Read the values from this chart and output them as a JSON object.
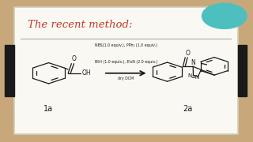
{
  "bg_outer": "#c8a87a",
  "bg_inner": "#faf8f2",
  "border_color": "#d0cdb8",
  "title_text": "The recent method:",
  "title_color": "#c0392b",
  "sep_color": "#b0aea0",
  "badge_color": "#4dbfbf",
  "badge_text_color": "#ffffff",
  "draw_color": "#1a1a1a",
  "label_1a": "1a",
  "label_2a": "2a",
  "reagents_line1": "NBS(1.0 equiv.), PPh₃ (1.0 equiv.)",
  "reagents_line2": "BtH (1.0 equiv.), Et₃N (2.0 equiv.)",
  "reagents_line3": "dry DCM",
  "black_bar_color": "#1a1a1a"
}
